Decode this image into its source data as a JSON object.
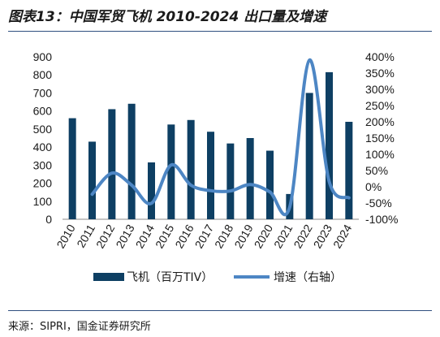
{
  "header": {
    "title": "图表13：中国军贸飞机 2010-2024 出口量及增速"
  },
  "footer": {
    "source": "来源：SIPRI，国金证券研究所"
  },
  "colors": {
    "bar": "#0e3f63",
    "line": "#4d86c4",
    "rule": "#2f4f7f"
  },
  "chart_data": {
    "type": "bar",
    "title": "",
    "categories": [
      "2010",
      "2011",
      "2012",
      "2013",
      "2014",
      "2015",
      "2016",
      "2017",
      "2018",
      "2019",
      "2020",
      "2021",
      "2022",
      "2023",
      "2024"
    ],
    "series": [
      {
        "name": "飞机（百万TIV）",
        "type": "bar",
        "axis": "left",
        "values": [
          560,
          430,
          610,
          640,
          315,
          525,
          550,
          485,
          420,
          450,
          380,
          140,
          700,
          815,
          540
        ]
      },
      {
        "name": "增速（右轴）",
        "type": "line",
        "axis": "right",
        "smooth": true,
        "values": [
          null,
          -23,
          42,
          5,
          -51,
          67,
          5,
          -12,
          -13,
          7,
          -16,
          -63,
          390,
          16,
          -34
        ]
      }
    ],
    "y_left": {
      "min": 0,
      "max": 900,
      "ticks": [
        "900",
        "800",
        "700",
        "600",
        "500",
        "400",
        "300",
        "200",
        "100",
        "0"
      ]
    },
    "y_right": {
      "min": -100,
      "max": 400,
      "ticks": [
        "400%",
        "350%",
        "300%",
        "250%",
        "200%",
        "150%",
        "100%",
        "50%",
        "0%",
        "-50%",
        "-100%"
      ]
    },
    "legend": {
      "position": "bottom",
      "items": [
        "飞机（百万TIV）",
        "增速（右轴）"
      ]
    },
    "grid": false
  }
}
